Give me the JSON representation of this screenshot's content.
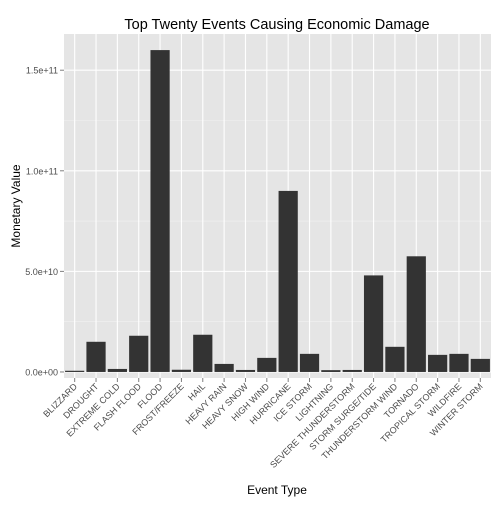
{
  "chart_data": {
    "type": "bar",
    "title": "Top Twenty Events Causing Economic Damage",
    "xlabel": "Event Type",
    "ylabel": "Monetary Value",
    "ylim": [
      -3000000000,
      168000000000
    ],
    "yticks": [
      0,
      50000000000,
      100000000000,
      150000000000
    ],
    "ytick_labels": [
      "0.0e+00",
      "5.0e+10",
      "1.0e+11",
      "1.5e+11"
    ],
    "grid": true,
    "categories": [
      "BLIZZARD",
      "DROUGHT",
      "EXTREME COLD",
      "FLASH FLOOD",
      "FLOOD",
      "FROST/FREEZE",
      "HAIL",
      "HEAVY RAIN",
      "HEAVY SNOW",
      "HIGH WIND",
      "HURRICANE",
      "ICE STORM",
      "LIGHTNING",
      "SEVERE THUNDERSTORM",
      "STORM SURGE/TIDE",
      "THUNDERSTORM WIND",
      "TORNADO",
      "TROPICAL STORM",
      "WILDFIRE",
      "WINTER STORM"
    ],
    "values": [
      600000000,
      15000000000,
      1500000000,
      18000000000,
      160000000000,
      1100000000,
      18500000000,
      4000000000,
      1000000000,
      7000000000,
      90000000000,
      9000000000,
      900000000,
      1000000000,
      48000000000,
      12500000000,
      57500000000,
      8500000000,
      9000000000,
      6500000000
    ],
    "colors": {
      "panel": "#e5e5e5",
      "grid_major": "#ffffff",
      "grid_minor": "#f2f2f2",
      "bar": "#333333",
      "tick_text": "#4d4d4d",
      "text": "#000000"
    }
  }
}
